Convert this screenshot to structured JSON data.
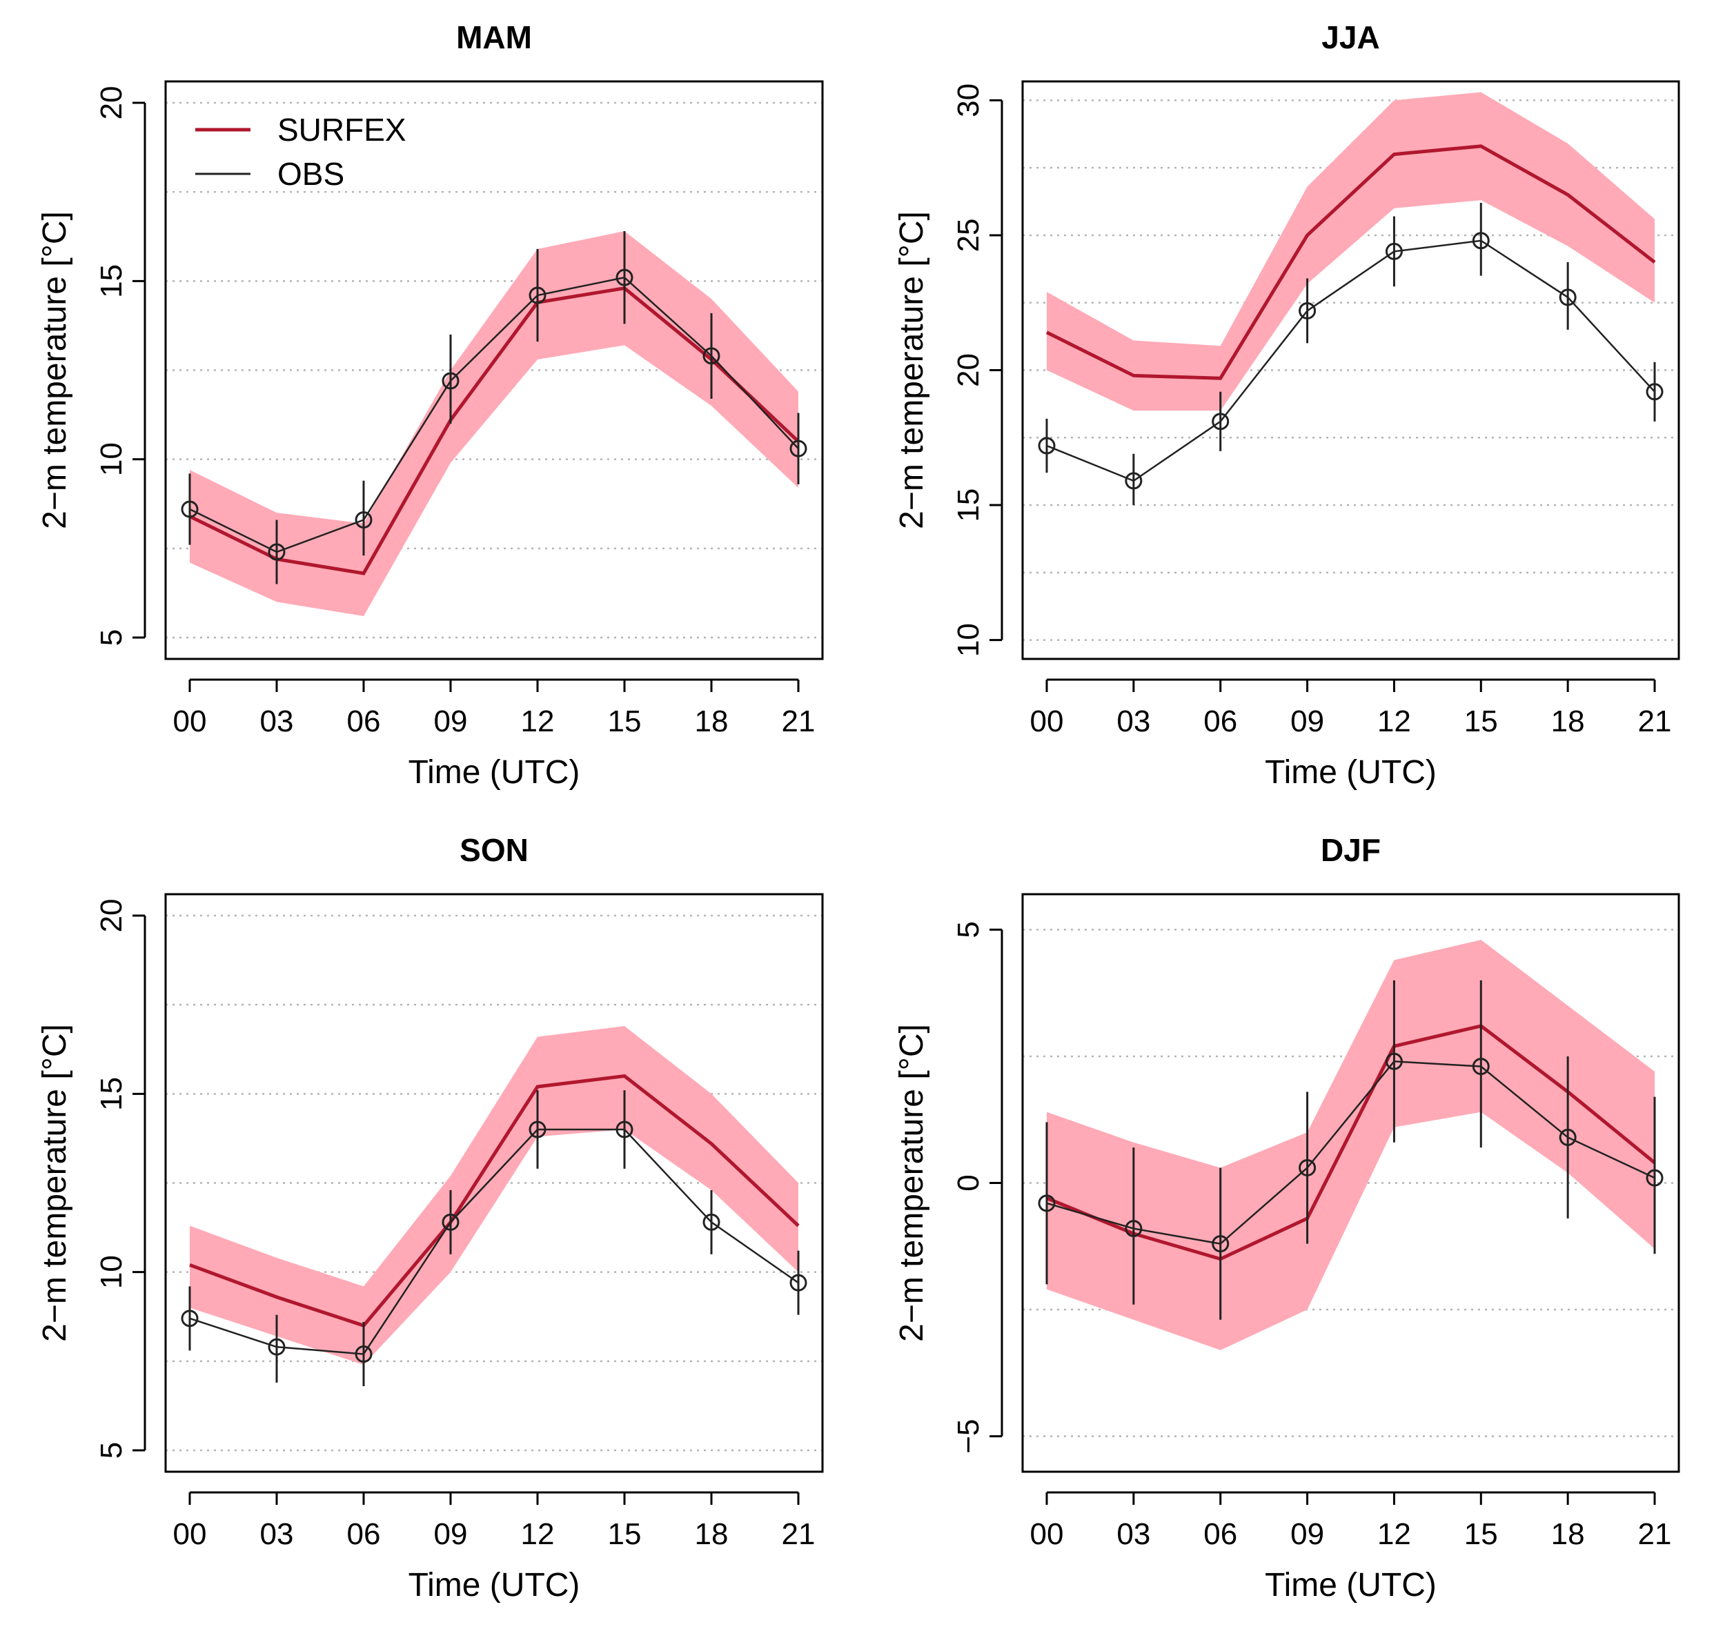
{
  "figure": {
    "legend": [
      {
        "name": "SURFEX",
        "color": "#b0172e"
      },
      {
        "name": "OBS",
        "color": "#222222"
      }
    ],
    "colors": {
      "surfex_line": "#b0172e",
      "surfex_band": "#ffaab6",
      "obs": "#222222",
      "grid": "#b4b4b4"
    },
    "xlabel": "Time (UTC)",
    "ylabel": "2−m temperature [°C]"
  },
  "chart_data": [
    {
      "type": "line",
      "title": "MAM",
      "x": [
        "00",
        "03",
        "06",
        "09",
        "12",
        "15",
        "18",
        "21"
      ],
      "xlabel": "Time (UTC)",
      "ylabel": "2−m temperature [°C]",
      "ylim": [
        4.4,
        20.6
      ],
      "yticks": [
        5,
        10,
        15,
        20
      ],
      "ytick_labels": [
        "5",
        "10",
        "15",
        "20"
      ],
      "grid_y": [
        5,
        7.5,
        10,
        12.5,
        15,
        17.5,
        20
      ],
      "legend": true,
      "series": [
        {
          "name": "SURFEX",
          "values": [
            8.4,
            7.2,
            6.8,
            11.1,
            14.4,
            14.8,
            12.8,
            10.5
          ],
          "lower": [
            7.1,
            6.0,
            5.6,
            9.9,
            12.8,
            13.2,
            11.5,
            9.2
          ],
          "upper": [
            9.7,
            8.5,
            8.2,
            12.5,
            15.9,
            16.4,
            14.5,
            11.9
          ]
        },
        {
          "name": "OBS",
          "values": [
            8.6,
            7.4,
            8.3,
            12.2,
            14.6,
            15.1,
            12.9,
            10.3
          ],
          "err_low": [
            7.6,
            6.5,
            7.3,
            11.0,
            13.3,
            13.8,
            11.7,
            9.3
          ],
          "err_high": [
            9.6,
            8.3,
            9.4,
            13.5,
            15.9,
            16.4,
            14.1,
            11.3
          ]
        }
      ]
    },
    {
      "type": "line",
      "title": "JJA",
      "x": [
        "00",
        "03",
        "06",
        "09",
        "12",
        "15",
        "18",
        "21"
      ],
      "xlabel": "Time (UTC)",
      "ylabel": "2−m temperature [°C]",
      "ylim": [
        9.3,
        30.7
      ],
      "yticks": [
        10,
        15,
        20,
        25,
        30
      ],
      "ytick_labels": [
        "10",
        "15",
        "20",
        "25",
        "30"
      ],
      "grid_y": [
        10,
        12.5,
        15,
        17.5,
        20,
        22.5,
        25,
        27.5,
        30
      ],
      "legend": false,
      "series": [
        {
          "name": "SURFEX",
          "values": [
            21.4,
            19.8,
            19.7,
            25.0,
            28.0,
            28.3,
            26.5,
            24.0
          ],
          "lower": [
            20.0,
            18.5,
            18.5,
            23.2,
            26.0,
            26.3,
            24.6,
            22.5
          ],
          "upper": [
            22.9,
            21.1,
            20.9,
            26.8,
            30.0,
            30.3,
            28.4,
            25.6
          ]
        },
        {
          "name": "OBS",
          "values": [
            17.2,
            15.9,
            18.1,
            22.2,
            24.4,
            24.8,
            22.7,
            19.2
          ],
          "err_low": [
            16.2,
            15.0,
            17.0,
            21.0,
            23.1,
            23.5,
            21.5,
            18.1
          ],
          "err_high": [
            18.2,
            16.9,
            19.2,
            23.4,
            25.7,
            26.2,
            24.0,
            20.3
          ]
        }
      ]
    },
    {
      "type": "line",
      "title": "SON",
      "x": [
        "00",
        "03",
        "06",
        "09",
        "12",
        "15",
        "18",
        "21"
      ],
      "xlabel": "Time (UTC)",
      "ylabel": "2−m temperature [°C]",
      "ylim": [
        4.4,
        20.6
      ],
      "yticks": [
        5,
        10,
        15,
        20
      ],
      "ytick_labels": [
        "5",
        "10",
        "15",
        "20"
      ],
      "grid_y": [
        5,
        7.5,
        10,
        12.5,
        15,
        17.5,
        20
      ],
      "legend": false,
      "series": [
        {
          "name": "SURFEX",
          "values": [
            10.2,
            9.3,
            8.5,
            11.4,
            15.2,
            15.5,
            13.6,
            11.3
          ],
          "lower": [
            9.0,
            8.2,
            7.4,
            10.0,
            13.8,
            14.0,
            12.3,
            10.0
          ],
          "upper": [
            11.3,
            10.4,
            9.6,
            12.7,
            16.6,
            16.9,
            15.0,
            12.5
          ]
        },
        {
          "name": "OBS",
          "values": [
            8.7,
            7.9,
            7.7,
            11.4,
            14.0,
            14.0,
            11.4,
            9.7
          ],
          "err_low": [
            7.8,
            6.9,
            6.8,
            10.5,
            12.9,
            12.9,
            10.5,
            8.8
          ],
          "err_high": [
            9.6,
            8.8,
            8.6,
            12.3,
            15.1,
            15.1,
            12.3,
            10.6
          ]
        }
      ]
    },
    {
      "type": "line",
      "title": "DJF",
      "x": [
        "00",
        "03",
        "06",
        "09",
        "12",
        "15",
        "18",
        "21"
      ],
      "xlabel": "Time (UTC)",
      "ylabel": "2−m temperature [°C]",
      "ylim": [
        -5.7,
        5.7
      ],
      "yticks": [
        -5,
        0,
        5
      ],
      "ytick_labels": [
        "−5",
        "0",
        "5"
      ],
      "grid_y": [
        -5,
        -2.5,
        0,
        2.5,
        5
      ],
      "legend": false,
      "series": [
        {
          "name": "SURFEX",
          "values": [
            -0.3,
            -1.0,
            -1.5,
            -0.7,
            2.7,
            3.1,
            1.8,
            0.4
          ],
          "lower": [
            -2.1,
            -2.7,
            -3.3,
            -2.5,
            1.1,
            1.4,
            0.2,
            -1.3
          ],
          "upper": [
            1.4,
            0.8,
            0.3,
            1.0,
            4.4,
            4.8,
            3.5,
            2.2
          ]
        },
        {
          "name": "OBS",
          "values": [
            -0.4,
            -0.9,
            -1.2,
            0.3,
            2.4,
            2.3,
            0.9,
            0.1
          ],
          "err_low": [
            -2.0,
            -2.4,
            -2.7,
            -1.2,
            0.8,
            0.7,
            -0.7,
            -1.4
          ],
          "err_high": [
            1.2,
            0.7,
            0.3,
            1.8,
            4.0,
            4.0,
            2.5,
            1.7
          ]
        }
      ]
    }
  ]
}
